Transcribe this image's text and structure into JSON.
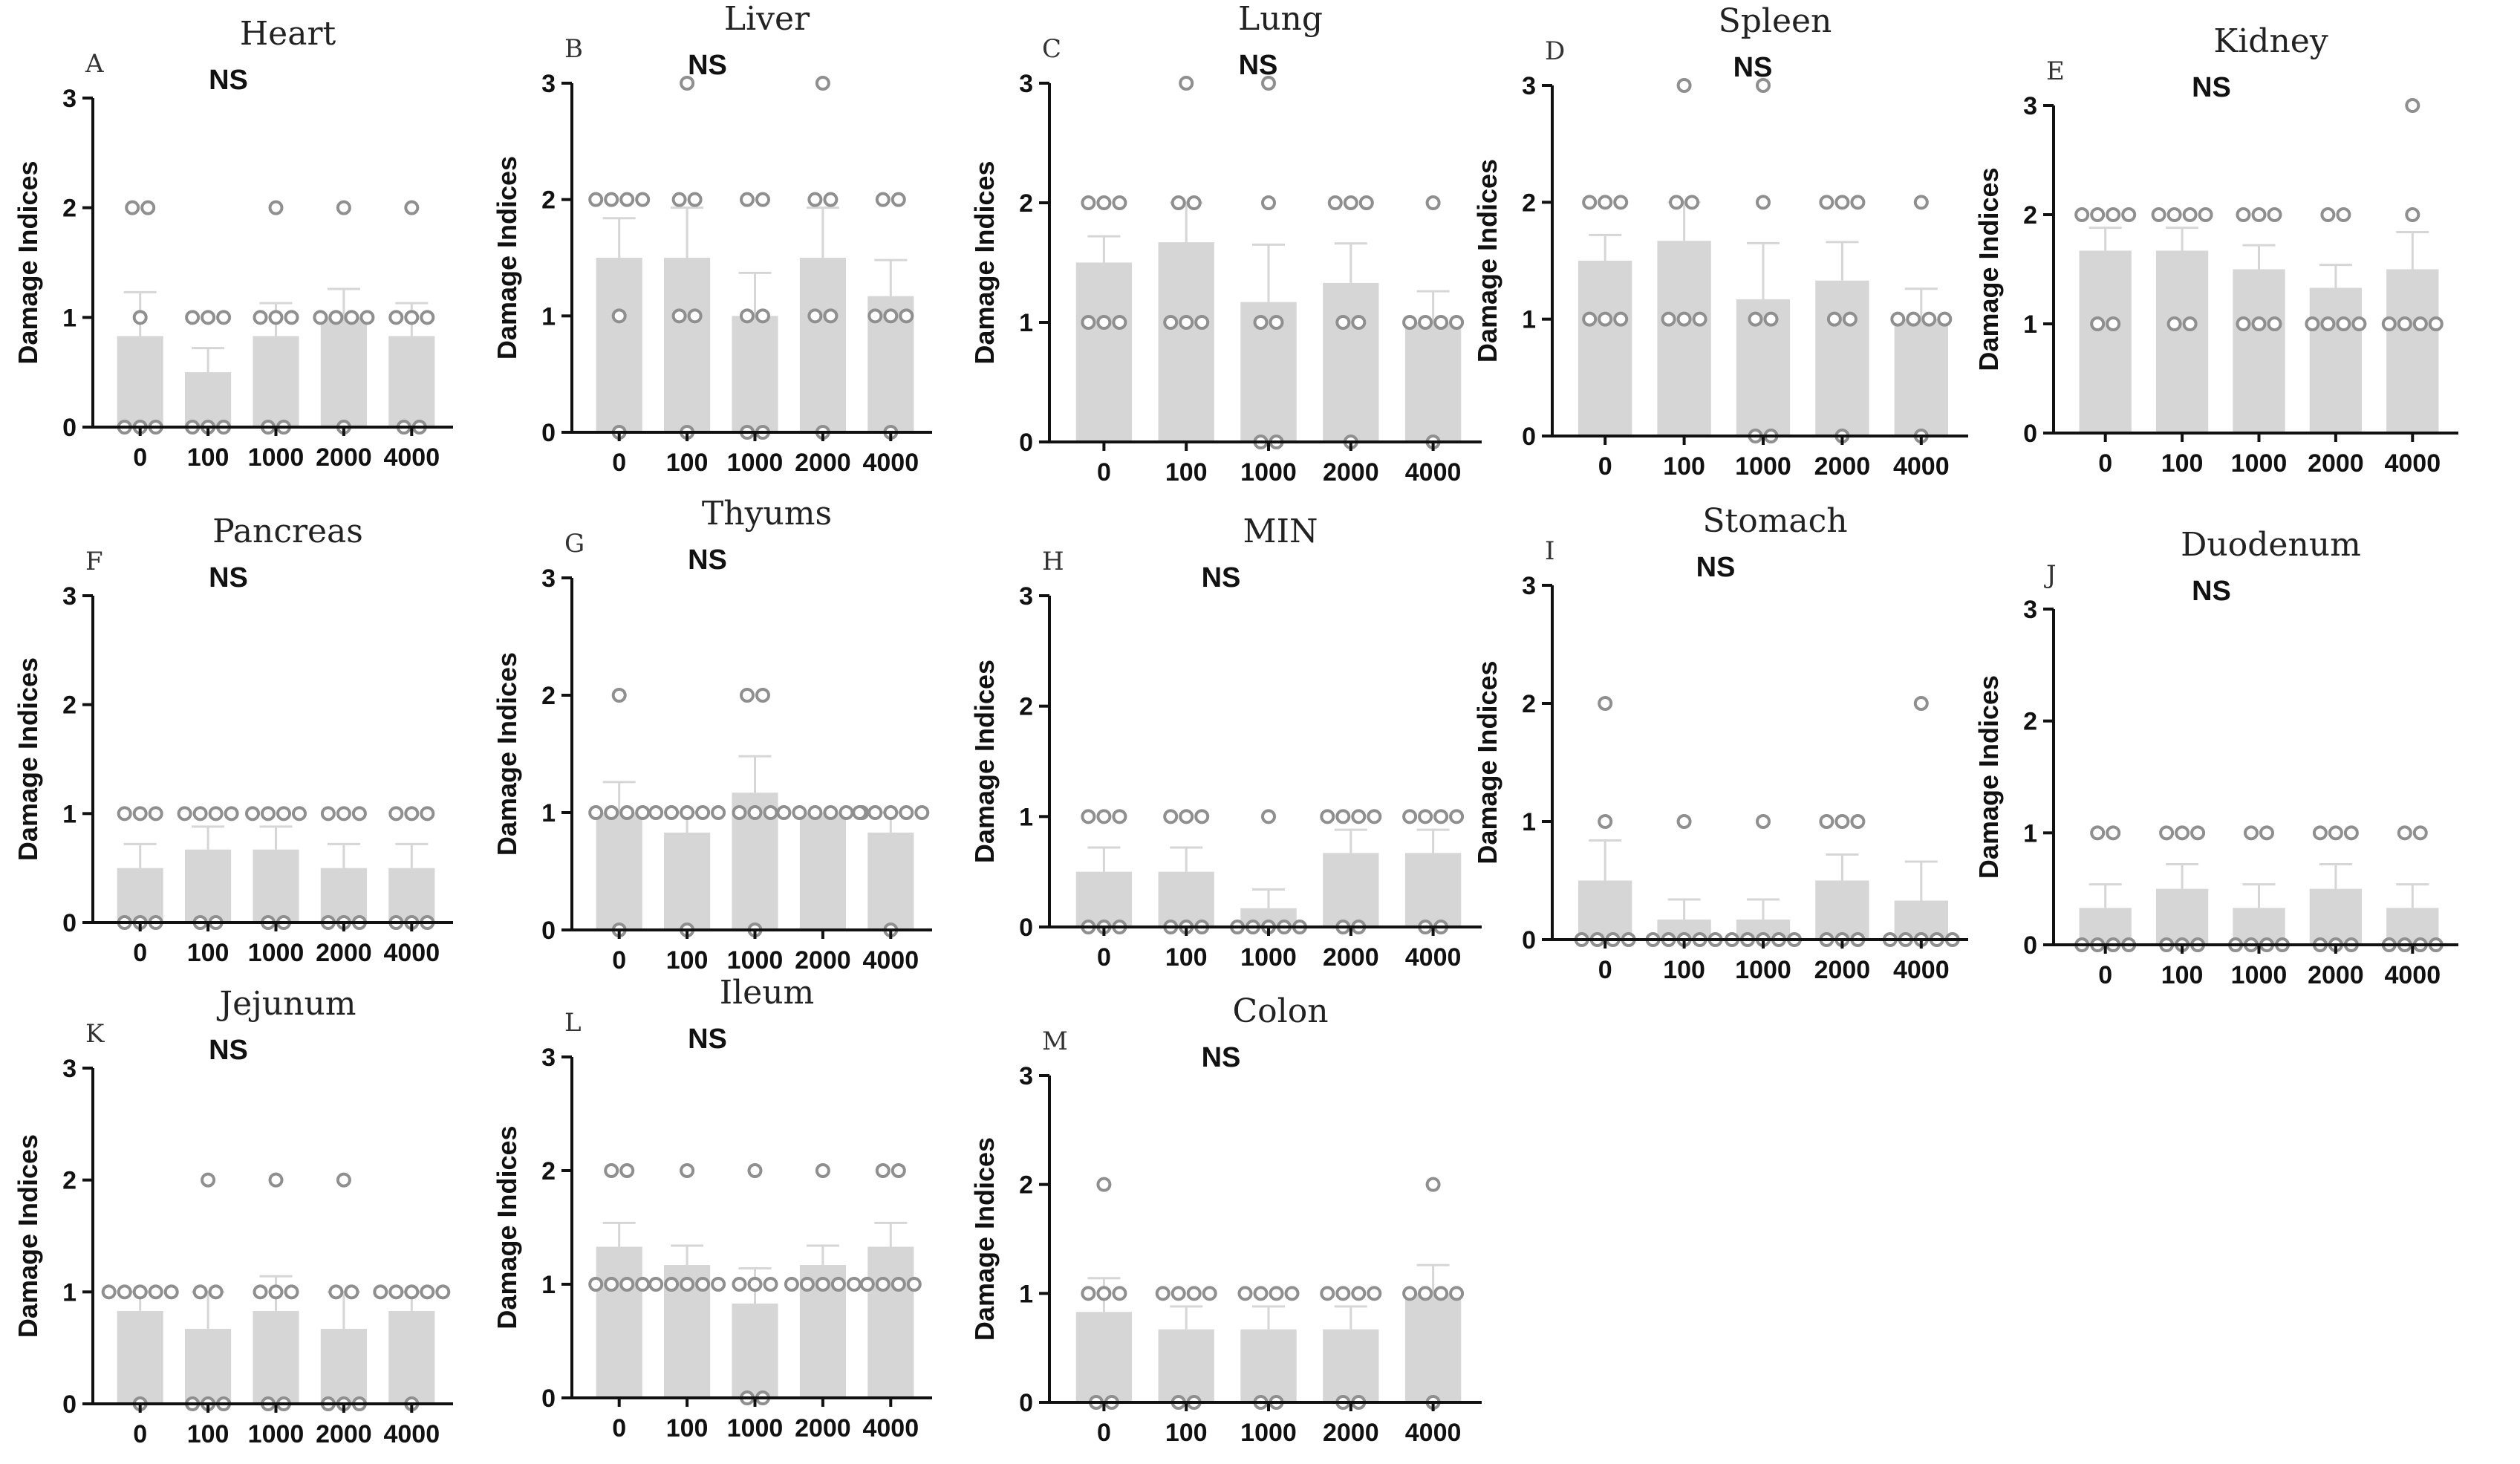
{
  "chart_data": [
    {
      "type": "bar",
      "letter": "A",
      "title": "Heart",
      "annotation": "NS",
      "ylabel": "Damage Indices",
      "categories": [
        "0",
        "100",
        "1000",
        "2000",
        "4000"
      ],
      "ylim": [
        0,
        3
      ],
      "yticks": [
        "0",
        "1",
        "2",
        "3"
      ],
      "values": [
        0.83,
        0.5,
        0.83,
        1.0,
        0.83
      ],
      "errors": [
        0.4,
        0.22,
        0.3,
        0.26,
        0.3
      ],
      "points": [
        [
          0,
          0,
          0,
          1,
          2,
          2
        ],
        [
          0,
          0,
          0,
          1,
          1,
          1
        ],
        [
          0,
          0,
          1,
          1,
          1,
          2
        ],
        [
          0,
          1,
          1,
          1,
          1,
          2
        ],
        [
          0,
          0,
          1,
          1,
          1,
          2
        ]
      ]
    },
    {
      "type": "bar",
      "letter": "B",
      "title": "Liver",
      "annotation": "NS",
      "ylabel": "Damage Indices",
      "categories": [
        "0",
        "100",
        "1000",
        "2000",
        "4000"
      ],
      "ylim": [
        0,
        3
      ],
      "yticks": [
        "0",
        "1",
        "2",
        "3"
      ],
      "values": [
        1.5,
        1.5,
        1.0,
        1.5,
        1.17
      ],
      "errors": [
        0.34,
        0.43,
        0.37,
        0.43,
        0.31
      ],
      "points": [
        [
          0,
          1,
          2,
          2,
          2,
          2
        ],
        [
          0,
          1,
          1,
          2,
          2,
          3
        ],
        [
          0,
          0,
          1,
          1,
          2,
          2
        ],
        [
          0,
          1,
          1,
          2,
          2,
          3
        ],
        [
          0,
          1,
          1,
          1,
          2,
          2
        ]
      ]
    },
    {
      "type": "bar",
      "letter": "C",
      "title": "Lung",
      "annotation": "NS",
      "ylabel": "Damage Indices",
      "categories": [
        "0",
        "100",
        "1000",
        "2000",
        "4000"
      ],
      "ylim": [
        0,
        3
      ],
      "yticks": [
        "0",
        "1",
        "2",
        "3"
      ],
      "values": [
        1.5,
        1.67,
        1.17,
        1.33,
        1.0
      ],
      "errors": [
        0.22,
        0.33,
        0.48,
        0.33,
        0.26
      ],
      "points": [
        [
          1,
          1,
          1,
          2,
          2,
          2
        ],
        [
          1,
          1,
          1,
          2,
          2,
          3
        ],
        [
          0,
          0,
          1,
          1,
          2,
          3
        ],
        [
          0,
          1,
          1,
          2,
          2,
          2
        ],
        [
          0,
          1,
          1,
          1,
          1,
          2
        ]
      ]
    },
    {
      "type": "bar",
      "letter": "D",
      "title": "Spleen",
      "annotation": "NS",
      "ylabel": "Damage Indices",
      "categories": [
        "0",
        "100",
        "1000",
        "2000",
        "4000"
      ],
      "ylim": [
        0,
        3
      ],
      "yticks": [
        "0",
        "1",
        "2",
        "3"
      ],
      "values": [
        1.5,
        1.67,
        1.17,
        1.33,
        1.0
      ],
      "errors": [
        0.22,
        0.33,
        0.48,
        0.33,
        0.26
      ],
      "points": [
        [
          1,
          1,
          1,
          2,
          2,
          2
        ],
        [
          1,
          1,
          1,
          2,
          2,
          3
        ],
        [
          0,
          0,
          1,
          1,
          2,
          3
        ],
        [
          0,
          1,
          1,
          2,
          2,
          2
        ],
        [
          0,
          1,
          1,
          1,
          1,
          2
        ]
      ]
    },
    {
      "type": "bar",
      "letter": "E",
      "title": "Kidney",
      "annotation": "NS",
      "ylabel": "Damage Indices",
      "categories": [
        "0",
        "100",
        "1000",
        "2000",
        "4000"
      ],
      "ylim": [
        0,
        3
      ],
      "yticks": [
        "0",
        "1",
        "2",
        "3"
      ],
      "values": [
        1.67,
        1.67,
        1.5,
        1.33,
        1.5
      ],
      "errors": [
        0.21,
        0.21,
        0.22,
        0.21,
        0.34
      ],
      "points": [
        [
          1,
          1,
          2,
          2,
          2,
          2
        ],
        [
          1,
          1,
          2,
          2,
          2,
          2
        ],
        [
          1,
          1,
          1,
          2,
          2,
          2
        ],
        [
          1,
          1,
          1,
          1,
          2,
          2
        ],
        [
          1,
          1,
          1,
          1,
          2,
          3
        ]
      ]
    },
    {
      "type": "bar",
      "letter": "F",
      "title": "Pancreas",
      "annotation": "NS",
      "ylabel": "Damage Indices",
      "categories": [
        "0",
        "100",
        "1000",
        "2000",
        "4000"
      ],
      "ylim": [
        0,
        3
      ],
      "yticks": [
        "0",
        "1",
        "2",
        "3"
      ],
      "values": [
        0.5,
        0.67,
        0.67,
        0.5,
        0.5
      ],
      "errors": [
        0.22,
        0.21,
        0.21,
        0.22,
        0.22
      ],
      "points": [
        [
          0,
          0,
          0,
          1,
          1,
          1
        ],
        [
          0,
          0,
          1,
          1,
          1,
          1
        ],
        [
          0,
          0,
          1,
          1,
          1,
          1
        ],
        [
          0,
          0,
          0,
          1,
          1,
          1
        ],
        [
          0,
          0,
          0,
          1,
          1,
          1
        ]
      ]
    },
    {
      "type": "bar",
      "letter": "G",
      "title": "Thyums",
      "annotation": "NS",
      "ylabel": "Damage Indices",
      "categories": [
        "0",
        "100",
        "1000",
        "2000",
        "4000"
      ],
      "ylim": [
        0,
        3
      ],
      "yticks": [
        "0",
        "1",
        "2",
        "3"
      ],
      "values": [
        1.0,
        0.83,
        1.17,
        1.0,
        0.83
      ],
      "errors": [
        0.26,
        0.17,
        0.31,
        0.0,
        0.17
      ],
      "points": [
        [
          0,
          1,
          1,
          1,
          1,
          2
        ],
        [
          0,
          1,
          1,
          1,
          1,
          1
        ],
        [
          0,
          1,
          1,
          1,
          2,
          2
        ],
        [
          1,
          1,
          1,
          1,
          1,
          1
        ],
        [
          0,
          1,
          1,
          1,
          1,
          1
        ]
      ]
    },
    {
      "type": "bar",
      "letter": "H",
      "title": "MIN",
      "annotation": "NS",
      "ylabel": "Damage Indices",
      "categories": [
        "0",
        "100",
        "1000",
        "2000",
        "4000"
      ],
      "ylim": [
        0,
        3
      ],
      "yticks": [
        "0",
        "1",
        "2",
        "3"
      ],
      "values": [
        0.5,
        0.5,
        0.17,
        0.67,
        0.67
      ],
      "errors": [
        0.22,
        0.22,
        0.17,
        0.21,
        0.21
      ],
      "points": [
        [
          0,
          0,
          0,
          1,
          1,
          1
        ],
        [
          0,
          0,
          0,
          1,
          1,
          1
        ],
        [
          0,
          0,
          0,
          0,
          0,
          1
        ],
        [
          0,
          0,
          1,
          1,
          1,
          1
        ],
        [
          0,
          0,
          1,
          1,
          1,
          1
        ]
      ]
    },
    {
      "type": "bar",
      "letter": "I",
      "title": "Stomach",
      "annotation": "NS",
      "ylabel": "Damage Indices",
      "categories": [
        "0",
        "100",
        "1000",
        "2000",
        "4000"
      ],
      "ylim": [
        0,
        3
      ],
      "yticks": [
        "0",
        "1",
        "2",
        "3"
      ],
      "values": [
        0.5,
        0.17,
        0.17,
        0.5,
        0.33
      ],
      "errors": [
        0.34,
        0.17,
        0.17,
        0.22,
        0.33
      ],
      "points": [
        [
          0,
          0,
          0,
          0,
          1,
          2
        ],
        [
          0,
          0,
          0,
          0,
          0,
          1
        ],
        [
          0,
          0,
          0,
          0,
          0,
          1
        ],
        [
          0,
          0,
          0,
          1,
          1,
          1
        ],
        [
          0,
          0,
          0,
          0,
          0,
          2
        ]
      ]
    },
    {
      "type": "bar",
      "letter": "J",
      "title": "Duodenum",
      "annotation": "NS",
      "ylabel": "Damage Indices",
      "categories": [
        "0",
        "100",
        "1000",
        "2000",
        "4000"
      ],
      "ylim": [
        0,
        3
      ],
      "yticks": [
        "0",
        "1",
        "2",
        "3"
      ],
      "values": [
        0.33,
        0.5,
        0.33,
        0.5,
        0.33
      ],
      "errors": [
        0.21,
        0.22,
        0.21,
        0.22,
        0.21
      ],
      "points": [
        [
          0,
          0,
          0,
          0,
          1,
          1
        ],
        [
          0,
          0,
          0,
          1,
          1,
          1
        ],
        [
          0,
          0,
          0,
          0,
          1,
          1
        ],
        [
          0,
          0,
          0,
          1,
          1,
          1
        ],
        [
          0,
          0,
          0,
          0,
          1,
          1
        ]
      ]
    },
    {
      "type": "bar",
      "letter": "K",
      "title": "Jejunum",
      "annotation": "NS",
      "ylabel": "Damage Indices",
      "categories": [
        "0",
        "100",
        "1000",
        "2000",
        "4000"
      ],
      "ylim": [
        0,
        3
      ],
      "yticks": [
        "0",
        "1",
        "2",
        "3"
      ],
      "values": [
        0.83,
        0.67,
        0.83,
        0.67,
        0.83
      ],
      "errors": [
        0.17,
        0.33,
        0.31,
        0.33,
        0.17
      ],
      "points": [
        [
          0,
          1,
          1,
          1,
          1,
          1
        ],
        [
          0,
          0,
          0,
          1,
          1,
          2
        ],
        [
          0,
          0,
          1,
          1,
          1,
          2
        ],
        [
          0,
          0,
          0,
          1,
          1,
          2
        ],
        [
          0,
          1,
          1,
          1,
          1,
          1
        ]
      ]
    },
    {
      "type": "bar",
      "letter": "L",
      "title": "Ileum",
      "annotation": "NS",
      "ylabel": "Damage Indices",
      "categories": [
        "0",
        "100",
        "1000",
        "2000",
        "4000"
      ],
      "ylim": [
        0,
        3
      ],
      "yticks": [
        "0",
        "1",
        "2",
        "3"
      ],
      "values": [
        1.33,
        1.17,
        0.83,
        1.17,
        1.33
      ],
      "errors": [
        0.21,
        0.17,
        0.31,
        0.17,
        0.21
      ],
      "points": [
        [
          1,
          1,
          1,
          1,
          2,
          2
        ],
        [
          1,
          1,
          1,
          1,
          1,
          2
        ],
        [
          0,
          0,
          1,
          1,
          1,
          2
        ],
        [
          1,
          1,
          1,
          1,
          1,
          2
        ],
        [
          1,
          1,
          1,
          1,
          2,
          2
        ]
      ]
    },
    {
      "type": "bar",
      "letter": "M",
      "title": "Colon",
      "annotation": "NS",
      "ylabel": "Damage Indices",
      "categories": [
        "0",
        "100",
        "1000",
        "2000",
        "4000"
      ],
      "ylim": [
        0,
        3
      ],
      "yticks": [
        "0",
        "1",
        "2",
        "3"
      ],
      "values": [
        0.83,
        0.67,
        0.67,
        0.67,
        1.0
      ],
      "errors": [
        0.31,
        0.21,
        0.21,
        0.21,
        0.26
      ],
      "points": [
        [
          0,
          0,
          1,
          1,
          1,
          2
        ],
        [
          0,
          0,
          1,
          1,
          1,
          1
        ],
        [
          0,
          0,
          1,
          1,
          1,
          1
        ],
        [
          0,
          0,
          1,
          1,
          1,
          1
        ],
        [
          0,
          1,
          1,
          1,
          1,
          2
        ]
      ]
    }
  ]
}
